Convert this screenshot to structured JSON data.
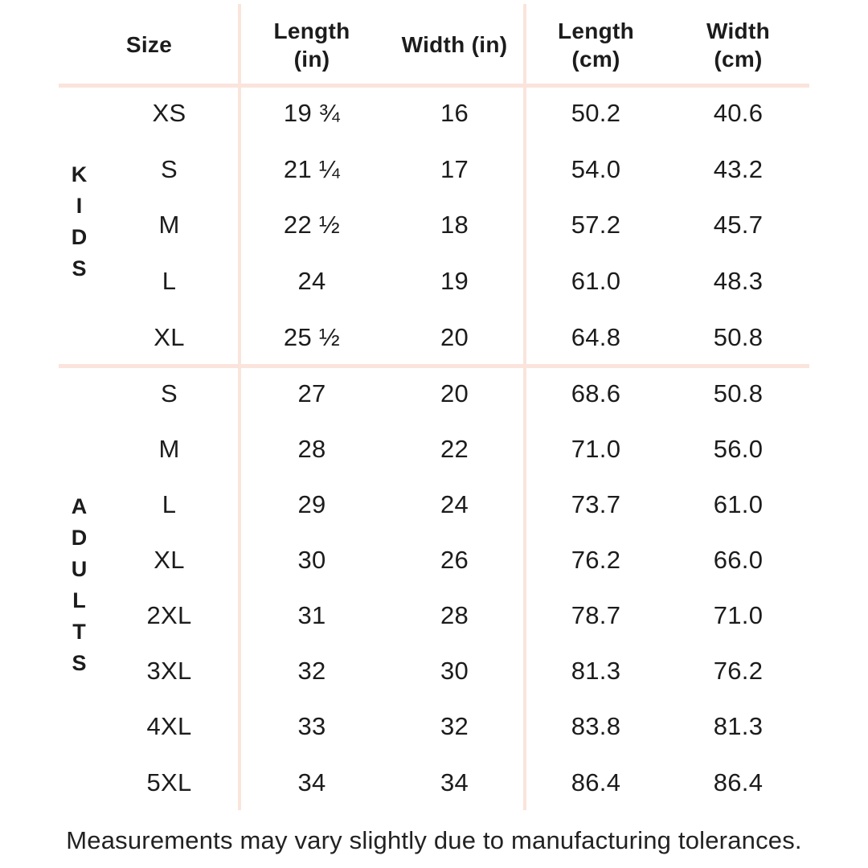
{
  "page": {
    "background": "#ffffff",
    "text_color": "#1c1c1c",
    "divider_color": "#fae4dc"
  },
  "headers": {
    "size": "Size",
    "length_in": [
      "Length",
      "(in)"
    ],
    "width_in": [
      "Width (in)"
    ],
    "length_cm": [
      "Length",
      "(cm)"
    ],
    "width_cm": [
      "Width",
      "(cm)"
    ]
  },
  "footer": {
    "note": "Measurements may vary slightly due to manufacturing tolerances."
  },
  "chart_data": {
    "type": "table",
    "columns": [
      "Size",
      "Length (in)",
      "Width (in)",
      "Length (cm)",
      "Width (cm)"
    ],
    "groups": [
      {
        "name": "KIDS",
        "rows": [
          [
            "XS",
            "19 ¾",
            "16",
            "50.2",
            "40.6"
          ],
          [
            "S",
            "21 ¼",
            "17",
            "54.0",
            "43.2"
          ],
          [
            "M",
            "22 ½",
            "18",
            "57.2",
            "45.7"
          ],
          [
            "L",
            "24",
            "19",
            "61.0",
            "48.3"
          ],
          [
            "XL",
            "25 ½",
            "20",
            "64.8",
            "50.8"
          ]
        ]
      },
      {
        "name": "ADULTS",
        "rows": [
          [
            "S",
            "27",
            "20",
            "68.6",
            "50.8"
          ],
          [
            "M",
            "28",
            "22",
            "71.0",
            "56.0"
          ],
          [
            "L",
            "29",
            "24",
            "73.7",
            "61.0"
          ],
          [
            "XL",
            "30",
            "26",
            "76.2",
            "66.0"
          ],
          [
            "2XL",
            "31",
            "28",
            "78.7",
            "71.0"
          ],
          [
            "3XL",
            "32",
            "30",
            "81.3",
            "76.2"
          ],
          [
            "4XL",
            "33",
            "32",
            "83.8",
            "81.3"
          ],
          [
            "5XL",
            "34",
            "34",
            "86.4",
            "86.4"
          ]
        ]
      }
    ]
  }
}
